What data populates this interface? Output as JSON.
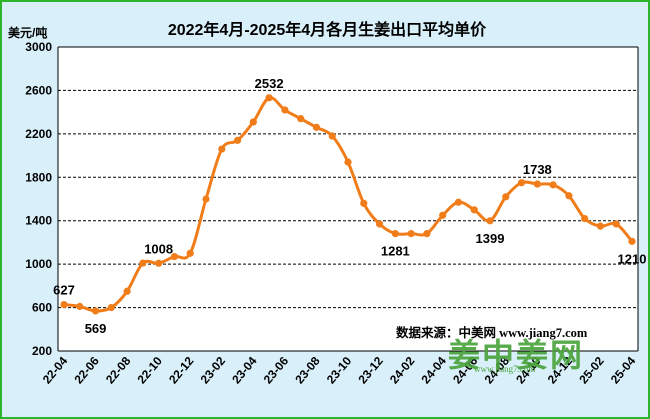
{
  "chart_data": {
    "type": "line",
    "title": "2022年4月-2025年4月各月生姜出口平均单价",
    "ylabel": "美元/吨",
    "xlabel": "",
    "ylim": [
      200,
      3000
    ],
    "yticks": [
      200,
      600,
      1000,
      1400,
      1800,
      2200,
      2600,
      3000
    ],
    "grid": "horizontal dashed",
    "line_color": "#f07d1a",
    "x": [
      "22-04",
      "22-05",
      "22-06",
      "22-07",
      "22-08",
      "22-09",
      "22-10",
      "22-11",
      "22-12",
      "23-01",
      "23-02",
      "23-03",
      "23-04",
      "23-05",
      "23-06",
      "23-07",
      "23-08",
      "23-09",
      "23-10",
      "23-11",
      "23-12",
      "24-01",
      "24-02",
      "24-03",
      "24-04",
      "24-05",
      "24-06",
      "24-07",
      "24-08",
      "24-09",
      "24-10",
      "24-11",
      "24-12",
      "25-01",
      "25-02",
      "25-03",
      "25-04"
    ],
    "xtick_labels": [
      "22-04",
      "22-06",
      "22-08",
      "22-10",
      "22-12",
      "23-02",
      "23-04",
      "23-06",
      "23-08",
      "23-10",
      "23-12",
      "24-02",
      "24-04",
      "24-06",
      "24-08",
      "24-10",
      "24-12",
      "25-02",
      "25-04"
    ],
    "values": [
      627,
      610,
      569,
      600,
      750,
      1010,
      1008,
      1070,
      1100,
      1600,
      2060,
      2140,
      2310,
      2532,
      2420,
      2340,
      2260,
      2180,
      1940,
      1560,
      1370,
      1281,
      1281,
      1281,
      1450,
      1570,
      1500,
      1399,
      1620,
      1750,
      1738,
      1730,
      1630,
      1420,
      1350,
      1370,
      1210
    ],
    "data_labels": [
      {
        "index": 0,
        "text": "627",
        "pos": "above"
      },
      {
        "index": 2,
        "text": "569",
        "pos": "below"
      },
      {
        "index": 6,
        "text": "1008",
        "pos": "above"
      },
      {
        "index": 13,
        "text": "2532",
        "pos": "above"
      },
      {
        "index": 21,
        "text": "1281",
        "pos": "below"
      },
      {
        "index": 27,
        "text": "1399",
        "pos": "below"
      },
      {
        "index": 30,
        "text": "1738",
        "pos": "above"
      },
      {
        "index": 36,
        "text": "1210",
        "pos": "below"
      }
    ]
  },
  "source_text": "数据来源：中美网 www.jiang7.com",
  "watermark": {
    "text": "姜中姜网",
    "subtext": "www.jiang7.com"
  }
}
